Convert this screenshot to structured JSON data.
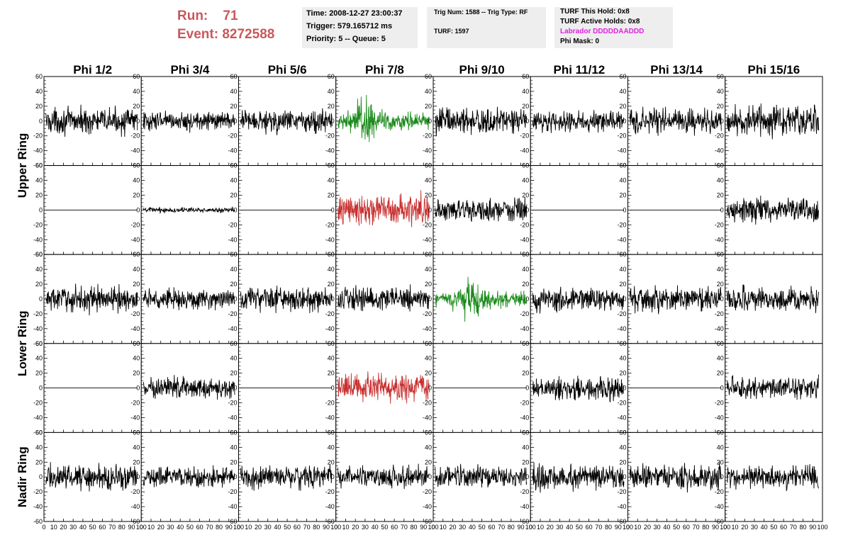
{
  "header": {
    "run_label": "Run:",
    "run_value": "71",
    "event_label": "Event:",
    "event_value": "8272588"
  },
  "info_time": {
    "time": "Time: 2008-12-27 23:00:37",
    "trigger": "Trigger: 579.165712 ms",
    "priority": "Priority: 5 -- Queue: 5"
  },
  "info_trig": {
    "trig": "Trig Num: 1588 -- Trig Type: RF",
    "turf": "TURF: 1597"
  },
  "info_turf": {
    "this_hold": "TURF This Hold: 0x8",
    "active_holds": "TURF Active Holds: 0x8",
    "labrador": "Labrador DDDDDAADDD",
    "phi_mask": "Phi Mask: 0"
  },
  "colors": {
    "header_red": "#c9585a",
    "labrador_magenta": "#e020e0",
    "trace_black": "#000000",
    "trace_green": "#1a8a1a",
    "trace_red": "#c83030"
  },
  "chart_data": {
    "type": "line",
    "columns": [
      "Phi 1/2",
      "Phi 3/4",
      "Phi 5/6",
      "Phi 7/8",
      "Phi 9/10",
      "Phi 11/12",
      "Phi 13/14",
      "Phi 15/16"
    ],
    "rows": [
      {
        "label": "Upper Ring",
        "pads": 2
      },
      {
        "label": "Lower Ring",
        "pads": 2
      },
      {
        "label": "Nadir Ring",
        "pads": 1
      }
    ],
    "xlim": [
      0,
      100
    ],
    "ylim": [
      -60,
      60
    ],
    "x_ticks": [
      0,
      10,
      20,
      30,
      40,
      50,
      60,
      70,
      80,
      90,
      100
    ],
    "y_ticks": [
      -60,
      -40,
      -20,
      0,
      20,
      40,
      60
    ],
    "grid": false,
    "panels": [
      [
        {
          "a": 15,
          "c": "black"
        },
        {
          "a": 11,
          "c": "black"
        },
        {
          "a": 14,
          "c": "black"
        },
        {
          "a": 20,
          "c": "green",
          "burst": 30
        },
        {
          "a": 16,
          "c": "black"
        },
        {
          "a": 12,
          "c": "black"
        },
        {
          "a": 15,
          "c": "black"
        },
        {
          "a": 18,
          "c": "black"
        }
      ],
      [
        {
          "a": 0,
          "c": "black"
        },
        {
          "a": 3,
          "c": "black"
        },
        {
          "a": 0,
          "c": "black"
        },
        {
          "a": 18,
          "c": "red"
        },
        {
          "a": 14,
          "c": "black"
        },
        {
          "a": 0,
          "c": "black"
        },
        {
          "a": 0,
          "c": "black"
        },
        {
          "a": 14,
          "c": "black"
        }
      ],
      [
        {
          "a": 15,
          "c": "black"
        },
        {
          "a": 12,
          "c": "black"
        },
        {
          "a": 14,
          "c": "black"
        },
        {
          "a": 14,
          "c": "black"
        },
        {
          "a": 17,
          "c": "green",
          "burst": 40
        },
        {
          "a": 14,
          "c": "black"
        },
        {
          "a": 15,
          "c": "black"
        },
        {
          "a": 14,
          "c": "black"
        }
      ],
      [
        {
          "a": 0,
          "c": "black"
        },
        {
          "a": 13,
          "c": "black"
        },
        {
          "a": 0,
          "c": "black"
        },
        {
          "a": 17,
          "c": "red"
        },
        {
          "a": 0,
          "c": "black"
        },
        {
          "a": 14,
          "c": "black"
        },
        {
          "a": 0,
          "c": "black"
        },
        {
          "a": 13,
          "c": "black"
        }
      ],
      [
        {
          "a": 15,
          "c": "black"
        },
        {
          "a": 12,
          "c": "black"
        },
        {
          "a": 14,
          "c": "black"
        },
        {
          "a": 13,
          "c": "black"
        },
        {
          "a": 13,
          "c": "black"
        },
        {
          "a": 16,
          "c": "black"
        },
        {
          "a": 15,
          "c": "black"
        },
        {
          "a": 14,
          "c": "black"
        }
      ]
    ]
  }
}
